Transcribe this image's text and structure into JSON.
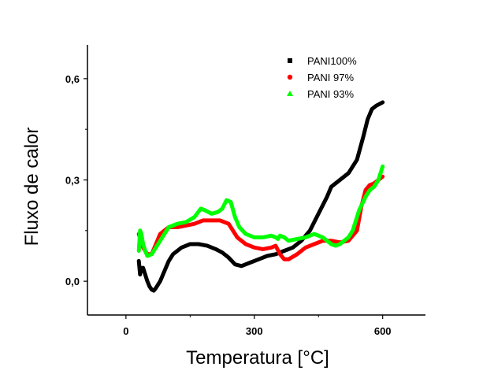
{
  "chart_data": {
    "type": "line",
    "title": "",
    "xlabel": "Temperatura [°C]",
    "ylabel": "Fluxo de calor",
    "xlim": [
      -90,
      700
    ],
    "ylim": [
      -0.1,
      0.7
    ],
    "x_ticks": [
      0,
      300,
      600
    ],
    "x_tick_labels": [
      "0",
      "300",
      "600"
    ],
    "y_ticks": [
      0.0,
      0.3,
      0.6
    ],
    "y_tick_labels": [
      "0,0",
      "0,3",
      "0,6"
    ],
    "grid": false,
    "legend_position": "top-right",
    "series": [
      {
        "name": "PANI100%",
        "color": "#000000",
        "marker": "square",
        "points": [
          [
            30,
            0.06
          ],
          [
            33,
            0.02
          ],
          [
            35,
            0.04
          ],
          [
            38,
            0.03
          ],
          [
            40,
            0.04
          ],
          [
            45,
            0.02
          ],
          [
            50,
            0.0
          ],
          [
            55,
            -0.015
          ],
          [
            60,
            -0.025
          ],
          [
            65,
            -0.028
          ],
          [
            70,
            -0.02
          ],
          [
            80,
            0.0
          ],
          [
            90,
            0.03
          ],
          [
            100,
            0.06
          ],
          [
            110,
            0.08
          ],
          [
            130,
            0.1
          ],
          [
            150,
            0.11
          ],
          [
            170,
            0.11
          ],
          [
            190,
            0.105
          ],
          [
            210,
            0.095
          ],
          [
            225,
            0.085
          ],
          [
            230,
            0.08
          ],
          [
            240,
            0.07
          ],
          [
            255,
            0.05
          ],
          [
            270,
            0.045
          ],
          [
            290,
            0.055
          ],
          [
            310,
            0.065
          ],
          [
            330,
            0.075
          ],
          [
            350,
            0.08
          ],
          [
            370,
            0.09
          ],
          [
            390,
            0.1
          ],
          [
            410,
            0.12
          ],
          [
            430,
            0.15
          ],
          [
            450,
            0.2
          ],
          [
            470,
            0.25
          ],
          [
            480,
            0.28
          ],
          [
            500,
            0.3
          ],
          [
            520,
            0.32
          ],
          [
            540,
            0.36
          ],
          [
            555,
            0.43
          ],
          [
            565,
            0.48
          ],
          [
            575,
            0.51
          ],
          [
            585,
            0.52
          ],
          [
            600,
            0.53
          ]
        ]
      },
      {
        "name": "PANI 97%",
        "color": "#ff0000",
        "marker": "circle",
        "points": [
          [
            30,
            0.14
          ],
          [
            40,
            0.1
          ],
          [
            50,
            0.08
          ],
          [
            60,
            0.08
          ],
          [
            70,
            0.11
          ],
          [
            80,
            0.14
          ],
          [
            100,
            0.16
          ],
          [
            120,
            0.16
          ],
          [
            140,
            0.165
          ],
          [
            160,
            0.17
          ],
          [
            180,
            0.18
          ],
          [
            200,
            0.18
          ],
          [
            220,
            0.18
          ],
          [
            240,
            0.17
          ],
          [
            260,
            0.13
          ],
          [
            280,
            0.11
          ],
          [
            300,
            0.1
          ],
          [
            320,
            0.095
          ],
          [
            340,
            0.1
          ],
          [
            350,
            0.105
          ],
          [
            360,
            0.08
          ],
          [
            370,
            0.065
          ],
          [
            380,
            0.065
          ],
          [
            400,
            0.08
          ],
          [
            420,
            0.1
          ],
          [
            440,
            0.11
          ],
          [
            460,
            0.12
          ],
          [
            480,
            0.12
          ],
          [
            500,
            0.115
          ],
          [
            520,
            0.12
          ],
          [
            540,
            0.15
          ],
          [
            550,
            0.22
          ],
          [
            560,
            0.27
          ],
          [
            570,
            0.285
          ],
          [
            580,
            0.29
          ],
          [
            590,
            0.3
          ],
          [
            600,
            0.31
          ]
        ]
      },
      {
        "name": "PANI 93%",
        "color": "#00ff00",
        "marker": "triangle",
        "points": [
          [
            30,
            0.09
          ],
          [
            33,
            0.15
          ],
          [
            36,
            0.14
          ],
          [
            40,
            0.11
          ],
          [
            45,
            0.09
          ],
          [
            50,
            0.075
          ],
          [
            60,
            0.08
          ],
          [
            70,
            0.1
          ],
          [
            80,
            0.12
          ],
          [
            90,
            0.14
          ],
          [
            100,
            0.16
          ],
          [
            120,
            0.17
          ],
          [
            140,
            0.175
          ],
          [
            160,
            0.19
          ],
          [
            175,
            0.215
          ],
          [
            185,
            0.21
          ],
          [
            200,
            0.2
          ],
          [
            215,
            0.205
          ],
          [
            225,
            0.215
          ],
          [
            235,
            0.24
          ],
          [
            245,
            0.235
          ],
          [
            255,
            0.19
          ],
          [
            265,
            0.16
          ],
          [
            280,
            0.14
          ],
          [
            300,
            0.13
          ],
          [
            320,
            0.13
          ],
          [
            340,
            0.135
          ],
          [
            350,
            0.13
          ],
          [
            355,
            0.125
          ],
          [
            360,
            0.135
          ],
          [
            370,
            0.13
          ],
          [
            380,
            0.12
          ],
          [
            400,
            0.125
          ],
          [
            420,
            0.13
          ],
          [
            440,
            0.14
          ],
          [
            460,
            0.13
          ],
          [
            480,
            0.11
          ],
          [
            490,
            0.105
          ],
          [
            500,
            0.11
          ],
          [
            520,
            0.13
          ],
          [
            530,
            0.15
          ],
          [
            545,
            0.21
          ],
          [
            560,
            0.25
          ],
          [
            570,
            0.27
          ],
          [
            580,
            0.28
          ],
          [
            590,
            0.3
          ],
          [
            600,
            0.34
          ]
        ]
      }
    ]
  }
}
